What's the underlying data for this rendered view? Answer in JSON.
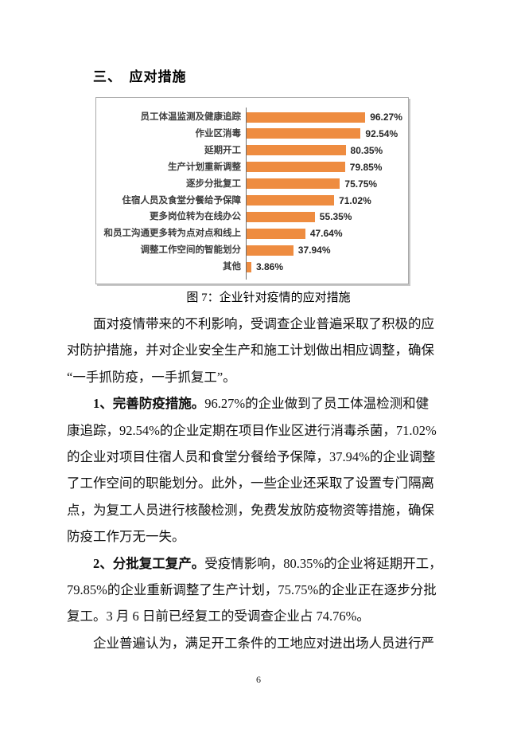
{
  "document": {
    "heading": "三、　应对措施",
    "figure_caption": "图 7：企业针对疫情的应对措施",
    "page_number": "6"
  },
  "chart_data": {
    "type": "bar",
    "orientation": "horizontal",
    "title": "",
    "xlabel": "",
    "ylabel": "",
    "grid": false,
    "legend": false,
    "xlim": [
      0,
      100
    ],
    "bar_color": "#EE8C40",
    "axis_color": "#6f6f6f",
    "categories": [
      "员工体温监测及健康追踪",
      "作业区消毒",
      "延期开工",
      "生产计划重新调整",
      "逐步分批复工",
      "住宿人员及食堂分餐给予保障",
      "更多岗位转为在线办公",
      "和员工沟通更多转为点对点和线上",
      "调整工作空间的智能划分",
      "其他"
    ],
    "values": [
      96.27,
      92.54,
      80.35,
      79.85,
      75.75,
      71.02,
      55.35,
      47.64,
      37.94,
      3.86
    ],
    "value_labels": [
      "96.27%",
      "92.54%",
      "80.35%",
      "79.85%",
      "75.75%",
      "71.02%",
      "55.35%",
      "47.64%",
      "37.94%",
      "3.86%"
    ]
  },
  "body": {
    "lines": [
      {
        "indent": true,
        "runs": [
          {
            "text": "面对疫情带来的不利影响，受调查企业普遍采取了积极的应"
          }
        ]
      },
      {
        "indent": false,
        "runs": [
          {
            "text": "对防护措施，并对企业安全生产和施工计划做出相应调整，确保"
          }
        ]
      },
      {
        "indent": false,
        "runs": [
          {
            "text": "“一手抓防疫，一手抓复工”。"
          }
        ]
      },
      {
        "indent": true,
        "runs": [
          {
            "text": "1、完善防疫措施。",
            "bold": true
          },
          {
            "text": "96.27%的企业做到了员工体温检测和健"
          }
        ]
      },
      {
        "indent": false,
        "runs": [
          {
            "text": "康追踪，92.54%的企业定期在项目作业区进行消毒杀菌，71.02%"
          }
        ]
      },
      {
        "indent": false,
        "runs": [
          {
            "text": "的企业对项目住宿人员和食堂分餐给予保障，37.94%的企业调整"
          }
        ]
      },
      {
        "indent": false,
        "runs": [
          {
            "text": "了工作空间的职能划分。此外，一些企业还采取了设置专门隔离"
          }
        ]
      },
      {
        "indent": false,
        "runs": [
          {
            "text": "点，为复工人员进行核酸检测，免费发放防疫物资等措施，确保"
          }
        ]
      },
      {
        "indent": false,
        "runs": [
          {
            "text": "防疫工作万无一失。"
          }
        ]
      },
      {
        "indent": true,
        "runs": [
          {
            "text": "2、分批复工复产。",
            "bold": true
          },
          {
            "text": "受疫情影响，80.35%的企业将延期开工，"
          }
        ]
      },
      {
        "indent": false,
        "runs": [
          {
            "text": "79.85%的企业重新调整了生产计划，75.75%的企业正在逐步分批"
          }
        ]
      },
      {
        "indent": false,
        "runs": [
          {
            "text": "复工。3 月 6 日前已经复工的受调查企业占 74.76%。"
          }
        ]
      },
      {
        "indent": true,
        "runs": [
          {
            "text": "企业普遍认为，满足开工条件的工地应对进出场人员进行严"
          }
        ]
      }
    ]
  }
}
